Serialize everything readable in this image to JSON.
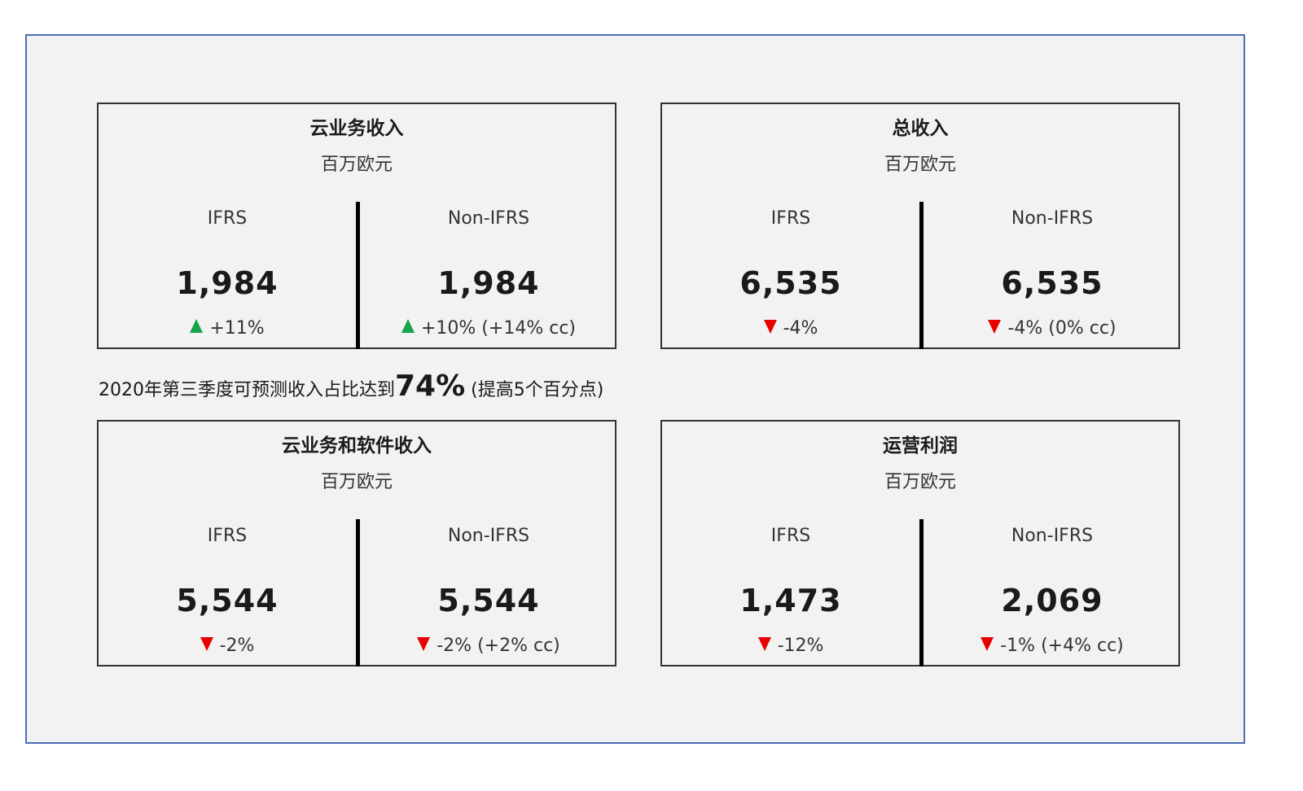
{
  "cards": [
    {
      "title": "云业务收入",
      "unit": "百万欧元",
      "ifrs": {
        "label": "IFRS",
        "value": "1,984",
        "direction": "up",
        "change": "+11%"
      },
      "non_ifrs": {
        "label": "Non-IFRS",
        "value": "1,984",
        "direction": "up",
        "change": "+10% (+14% cc)"
      }
    },
    {
      "title": "总收入",
      "unit": "百万欧元",
      "ifrs": {
        "label": "IFRS",
        "value": "6,535",
        "direction": "down",
        "change": "-4%"
      },
      "non_ifrs": {
        "label": "Non-IFRS",
        "value": "6,535",
        "direction": "down",
        "change": "-4% (0% cc)"
      }
    },
    {
      "title": "云业务和软件收入",
      "unit": "百万欧元",
      "ifrs": {
        "label": "IFRS",
        "value": "5,544",
        "direction": "down",
        "change": "-2%"
      },
      "non_ifrs": {
        "label": "Non-IFRS",
        "value": "5,544",
        "direction": "down",
        "change": "-2% (+2% cc)"
      }
    },
    {
      "title": "运营利润",
      "unit": "百万欧元",
      "ifrs": {
        "label": "IFRS",
        "value": "1,473",
        "direction": "down",
        "change": "-12%"
      },
      "non_ifrs": {
        "label": "Non-IFRS",
        "value": "2,069",
        "direction": "down",
        "change": "-1% (+4% cc)"
      }
    }
  ],
  "summary": {
    "prefix": "2020年第三季度可预测收入占比达到",
    "highlight": "74%",
    "suffix": " (提高5个百分点)"
  },
  "colors": {
    "up": "#16a34a",
    "down": "#e60000",
    "frame": "#4a6fb8"
  }
}
